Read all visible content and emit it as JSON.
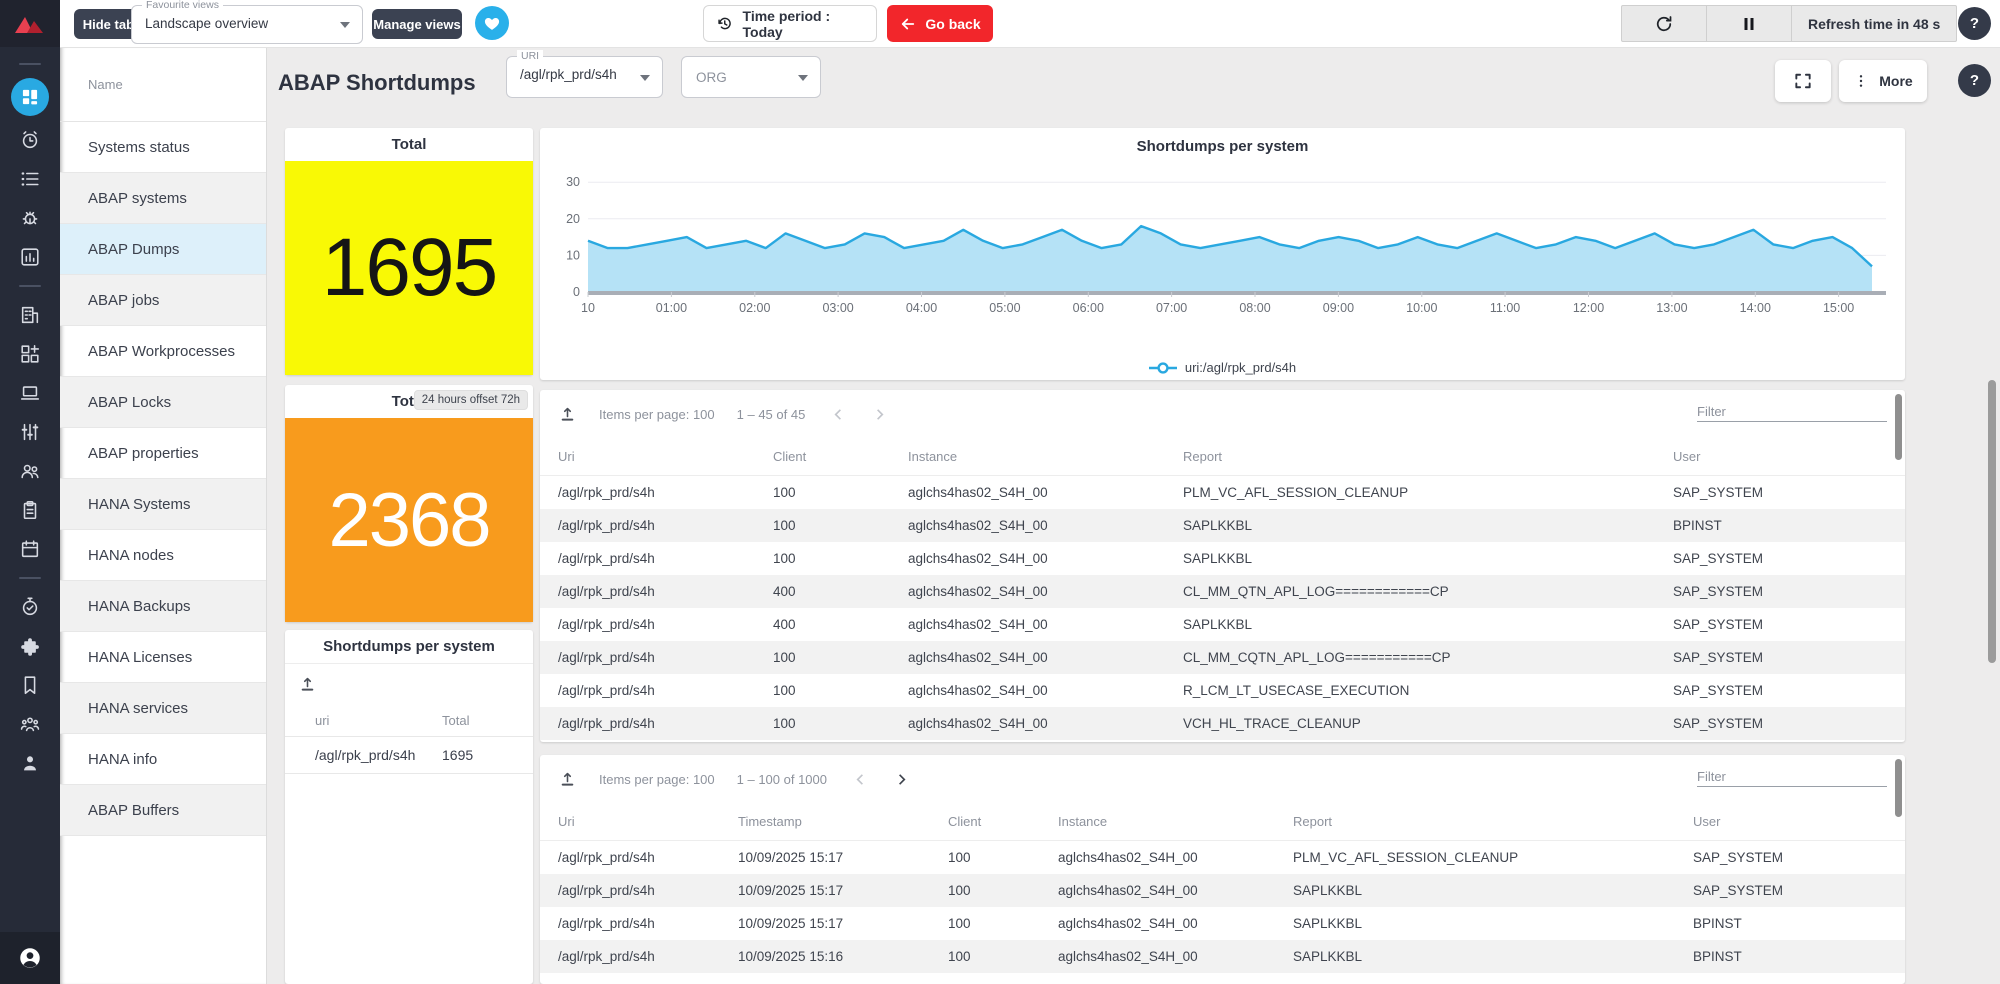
{
  "topbar": {
    "hide_tabs": "Hide tabs",
    "favourite_views_label": "Favourite views",
    "favourite_views_value": "Landscape overview",
    "manage_views": "Manage views",
    "time_period": "Time period : Today",
    "go_back": "Go back",
    "refresh_time": "Refresh time in 48 s",
    "help": "?"
  },
  "rail": {
    "active": "dashboard",
    "items": [
      "divider",
      "dashboard",
      "alarm",
      "list",
      "bug",
      "bar-chart",
      "divider",
      "building",
      "widgets",
      "laptop",
      "tune",
      "users",
      "clipboard",
      "calendar",
      "divider",
      "timer",
      "puzzle",
      "bookmark",
      "team",
      "person"
    ],
    "bottom": "account"
  },
  "sidebar": {
    "header": "Name",
    "items": [
      {
        "label": "Systems status"
      },
      {
        "label": "ABAP systems"
      },
      {
        "label": "ABAP Dumps",
        "selected": true
      },
      {
        "label": "ABAP jobs"
      },
      {
        "label": "ABAP Workprocesses"
      },
      {
        "label": "ABAP Locks"
      },
      {
        "label": "ABAP properties"
      },
      {
        "label": "HANA Systems"
      },
      {
        "label": "HANA nodes"
      },
      {
        "label": "HANA Backups"
      },
      {
        "label": "HANA Licenses"
      },
      {
        "label": "HANA services"
      },
      {
        "label": "HANA info"
      },
      {
        "label": "ABAP Buffers"
      }
    ]
  },
  "page": {
    "title": "ABAP Shortdumps",
    "uri_label": "URI",
    "uri_value": "/agl/rpk_prd/s4h",
    "org_label": "ORG",
    "more": "More",
    "help": "?"
  },
  "colors": {
    "accent_blue": "#29a9e2",
    "navy": "#262b38",
    "red": "#f2262b",
    "yellow": "#f9f905",
    "orange": "#f89b1d",
    "selected_row_blue": "#ddf0fa"
  },
  "cards": {
    "total": {
      "title": "Total",
      "value": "1695",
      "color": "#f9f905"
    },
    "total_offset": {
      "title": "Total",
      "badge": "24 hours offset 72h",
      "value": "2368",
      "color": "#f89b1d"
    },
    "per_system": {
      "title": "Shortdumps per system",
      "columns": [
        "uri",
        "Total"
      ],
      "rows": [
        [
          "/agl/rpk_prd/s4h",
          "1695"
        ]
      ]
    }
  },
  "chart_data": {
    "type": "area",
    "title": "Shortdumps per system",
    "xlabel": "",
    "ylabel": "",
    "ylim": [
      0,
      30
    ],
    "y_ticks": [
      0,
      10,
      20,
      30
    ],
    "x_ticks": [
      "10",
      "01:00",
      "02:00",
      "03:00",
      "04:00",
      "05:00",
      "06:00",
      "07:00",
      "08:00",
      "09:00",
      "10:00",
      "11:00",
      "12:00",
      "13:00",
      "14:00",
      "15:00"
    ],
    "grid": true,
    "legend_position": "bottom",
    "series": [
      {
        "name": "uri:/agl/rpk_prd/s4h",
        "color": "#29a8e0",
        "fill": "#b5e2f6",
        "values": [
          14,
          12,
          12,
          13,
          14,
          15,
          12,
          13,
          14,
          12,
          16,
          14,
          12,
          13,
          16,
          15,
          12,
          13,
          14,
          17,
          14,
          12,
          13,
          15,
          17,
          14,
          12,
          13,
          18,
          16,
          13,
          12,
          13,
          14,
          15,
          13,
          12,
          14,
          15,
          14,
          12,
          13,
          15,
          13,
          12,
          14,
          16,
          14,
          12,
          13,
          15,
          14,
          12,
          14,
          16,
          13,
          12,
          13,
          15,
          17,
          13,
          12,
          14,
          15,
          12,
          7
        ]
      }
    ]
  },
  "table1": {
    "items_per_page": "Items per page: 100",
    "range": "1 – 45 of 45",
    "filter_label": "Filter",
    "columns": [
      "Uri",
      "Client",
      "Instance",
      "Report",
      "User"
    ],
    "rows": [
      [
        "/agl/rpk_prd/s4h",
        "100",
        "aglchs4has02_S4H_00",
        "PLM_VC_AFL_SESSION_CLEANUP",
        "SAP_SYSTEM"
      ],
      [
        "/agl/rpk_prd/s4h",
        "100",
        "aglchs4has02_S4H_00",
        "SAPLKKBL",
        "BPINST"
      ],
      [
        "/agl/rpk_prd/s4h",
        "100",
        "aglchs4has02_S4H_00",
        "SAPLKKBL",
        "SAP_SYSTEM"
      ],
      [
        "/agl/rpk_prd/s4h",
        "400",
        "aglchs4has02_S4H_00",
        "CL_MM_QTN_APL_LOG============CP",
        "SAP_SYSTEM"
      ],
      [
        "/agl/rpk_prd/s4h",
        "400",
        "aglchs4has02_S4H_00",
        "SAPLKKBL",
        "SAP_SYSTEM"
      ],
      [
        "/agl/rpk_prd/s4h",
        "100",
        "aglchs4has02_S4H_00",
        "CL_MM_CQTN_APL_LOG===========CP",
        "SAP_SYSTEM"
      ],
      [
        "/agl/rpk_prd/s4h",
        "100",
        "aglchs4has02_S4H_00",
        "R_LCM_LT_USECASE_EXECUTION",
        "SAP_SYSTEM"
      ],
      [
        "/agl/rpk_prd/s4h",
        "100",
        "aglchs4has02_S4H_00",
        "VCH_HL_TRACE_CLEANUP",
        "SAP_SYSTEM"
      ]
    ]
  },
  "table2": {
    "items_per_page": "Items per page: 100",
    "range": "1 – 100 of 1000",
    "filter_label": "Filter",
    "columns": [
      "Uri",
      "Timestamp",
      "Client",
      "Instance",
      "Report",
      "User"
    ],
    "rows": [
      [
        "/agl/rpk_prd/s4h",
        "10/09/2025 15:17",
        "100",
        "aglchs4has02_S4H_00",
        "PLM_VC_AFL_SESSION_CLEANUP",
        "SAP_SYSTEM"
      ],
      [
        "/agl/rpk_prd/s4h",
        "10/09/2025 15:17",
        "100",
        "aglchs4has02_S4H_00",
        "SAPLKKBL",
        "SAP_SYSTEM"
      ],
      [
        "/agl/rpk_prd/s4h",
        "10/09/2025 15:17",
        "100",
        "aglchs4has02_S4H_00",
        "SAPLKKBL",
        "BPINST"
      ],
      [
        "/agl/rpk_prd/s4h",
        "10/09/2025 15:16",
        "100",
        "aglchs4has02_S4H_00",
        "SAPLKKBL",
        "BPINST"
      ]
    ]
  }
}
